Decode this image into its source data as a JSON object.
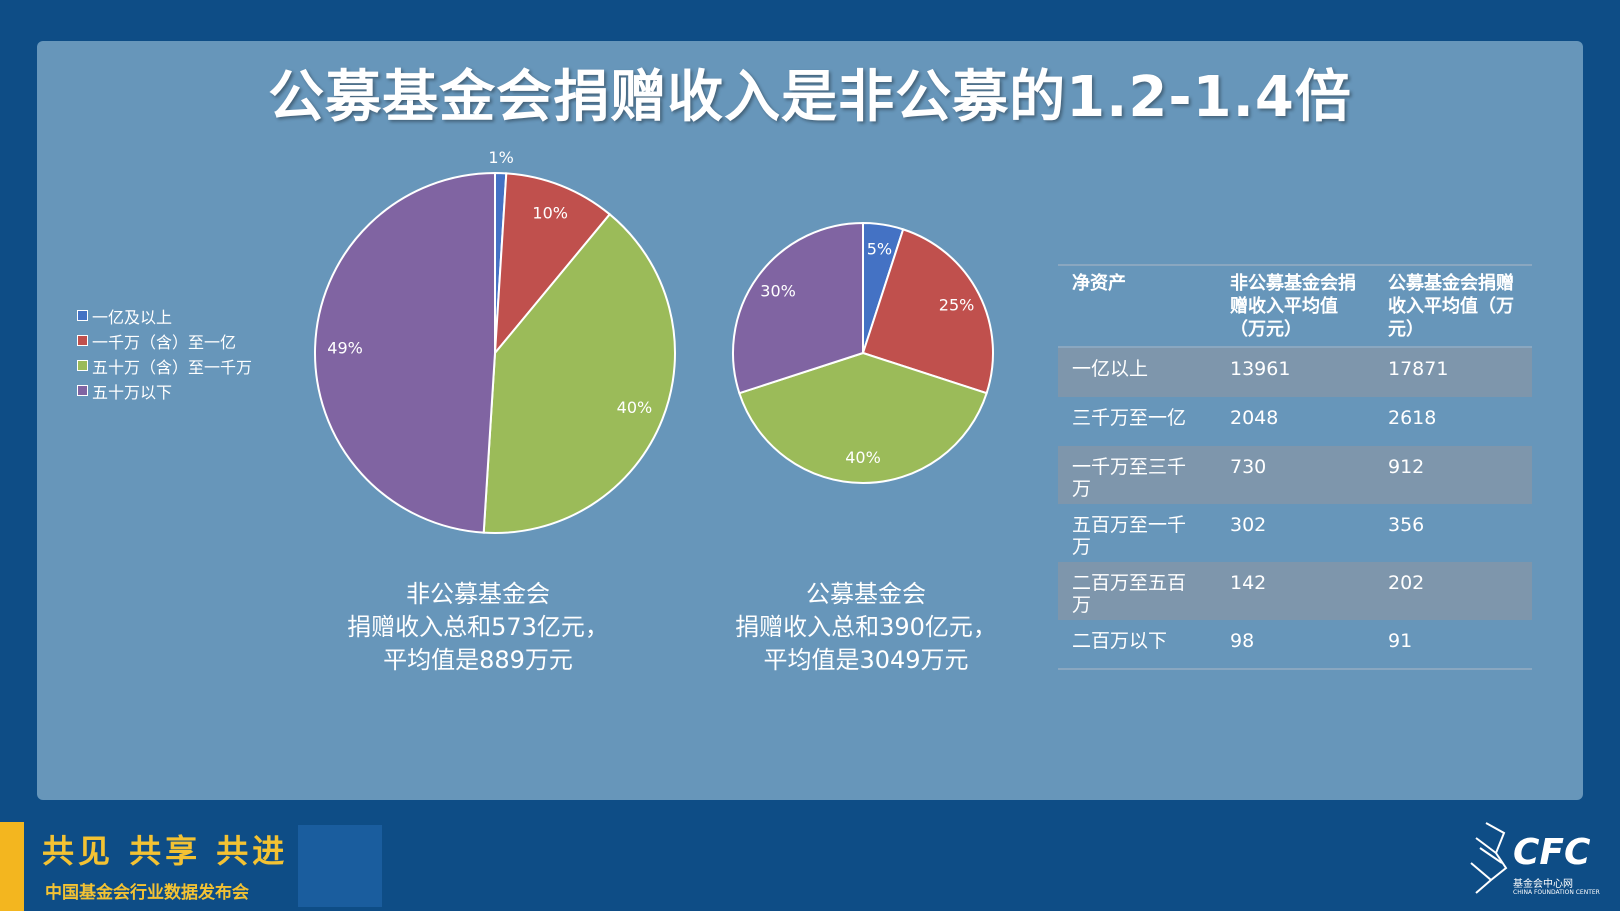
{
  "title": "公募基金会捐赠收入是非公募的1.2-1.4倍",
  "legend": [
    {
      "label": "一亿及以上",
      "color": "#4472c4"
    },
    {
      "label": "一千万（含）至一亿",
      "color": "#c0504d"
    },
    {
      "label": "五十万（含）至一千万",
      "color": "#9bbb59"
    },
    {
      "label": "五十万以下",
      "color": "#8064a2"
    }
  ],
  "captions": {
    "left": [
      "非公募基金会",
      "捐赠收入总和573亿元，",
      "平均值是889万元"
    ],
    "right": [
      "公募基金会",
      "捐赠收入总和390亿元，",
      "平均值是3049万元"
    ]
  },
  "chart_data": [
    {
      "type": "pie",
      "categories": [
        "一亿及以上",
        "一千万（含）至一亿",
        "五十万（含）至一千万",
        "五十万以下"
      ],
      "values": [
        1,
        10,
        40,
        49
      ],
      "labels": [
        "1%",
        "10%",
        "40%",
        "49%"
      ],
      "colors": [
        "#4472c4",
        "#c0504d",
        "#9bbb59",
        "#8064a2"
      ]
    },
    {
      "type": "pie",
      "categories": [
        "一亿及以上",
        "一千万（含）至一亿",
        "五十万（含）至一千万",
        "五十万以下"
      ],
      "values": [
        5,
        25,
        40,
        30
      ],
      "labels": [
        "5%",
        "25%",
        "40%",
        "30%"
      ],
      "colors": [
        "#4472c4",
        "#c0504d",
        "#9bbb59",
        "#8064a2"
      ]
    },
    {
      "type": "table",
      "headers": [
        "净资产",
        "非公募基金会捐赠收入平均值（万元）",
        "公募基金会捐赠收入平均值（万元）"
      ],
      "rows": [
        [
          "一亿以上",
          "13961",
          "17871"
        ],
        [
          "三千万至一亿",
          "2048",
          "2618"
        ],
        [
          "一千万至三千万",
          "730",
          "912"
        ],
        [
          "五百万至一千万",
          "302",
          "356"
        ],
        [
          "二百万至五百万",
          "142",
          "202"
        ],
        [
          "二百万以下",
          "98",
          "91"
        ]
      ]
    }
  ],
  "footer": {
    "slogan": "共见 共享 共进",
    "subtitle": "中国基金会行业数据发布会",
    "logo": "CFC",
    "logo_sub": "基金会中心网",
    "logo_sub_en": "CHINA FOUNDATION CENTER"
  }
}
